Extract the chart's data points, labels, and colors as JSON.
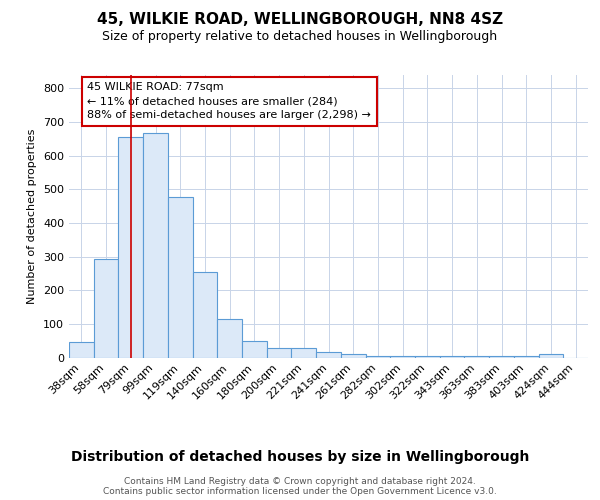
{
  "title": "45, WILKIE ROAD, WELLINGBOROUGH, NN8 4SZ",
  "subtitle": "Size of property relative to detached houses in Wellingborough",
  "xlabel": "Distribution of detached houses by size in Wellingborough",
  "ylabel": "Number of detached properties",
  "categories": [
    "38sqm",
    "58sqm",
    "79sqm",
    "99sqm",
    "119sqm",
    "140sqm",
    "160sqm",
    "180sqm",
    "200sqm",
    "221sqm",
    "241sqm",
    "261sqm",
    "282sqm",
    "302sqm",
    "322sqm",
    "343sqm",
    "363sqm",
    "383sqm",
    "403sqm",
    "424sqm",
    "444sqm"
  ],
  "values": [
    47,
    293,
    655,
    668,
    478,
    253,
    115,
    49,
    29,
    27,
    15,
    10,
    5,
    4,
    4,
    4,
    4,
    4,
    5,
    10,
    0
  ],
  "bar_color": "#dce9f8",
  "bar_edge_color": "#5b9bd5",
  "red_line_index": 2,
  "red_line_color": "#cc0000",
  "ylim": [
    0,
    840
  ],
  "yticks": [
    0,
    100,
    200,
    300,
    400,
    500,
    600,
    700,
    800
  ],
  "annotation_text": "45 WILKIE ROAD: 77sqm\n← 11% of detached houses are smaller (284)\n88% of semi-detached houses are larger (2,298) →",
  "annotation_box_color": "#ffffff",
  "annotation_box_edge": "#cc0000",
  "footer_line1": "Contains HM Land Registry data © Crown copyright and database right 2024.",
  "footer_line2": "Contains public sector information licensed under the Open Government Licence v3.0.",
  "background_color": "#ffffff",
  "grid_color": "#c8d4e8",
  "title_fontsize": 11,
  "subtitle_fontsize": 9,
  "ylabel_fontsize": 8,
  "xlabel_fontsize": 10,
  "tick_fontsize": 8,
  "ann_fontsize": 8,
  "footer_fontsize": 6.5
}
